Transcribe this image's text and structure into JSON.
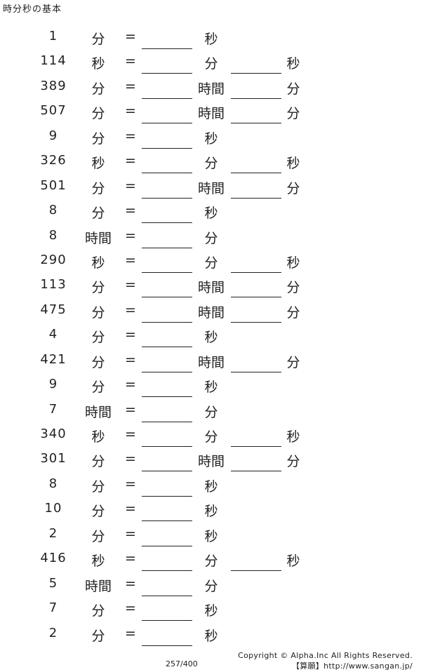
{
  "title": "時分秒の基本",
  "problems": [
    {
      "n": "1",
      "from": "分",
      "u2": "秒",
      "u3": ""
    },
    {
      "n": "114",
      "from": "秒",
      "u2": "分",
      "u3": "秒"
    },
    {
      "n": "389",
      "from": "分",
      "u2": "時間",
      "u3": "分"
    },
    {
      "n": "507",
      "from": "分",
      "u2": "時間",
      "u3": "分"
    },
    {
      "n": "9",
      "from": "分",
      "u2": "秒",
      "u3": ""
    },
    {
      "n": "326",
      "from": "秒",
      "u2": "分",
      "u3": "秒"
    },
    {
      "n": "501",
      "from": "分",
      "u2": "時間",
      "u3": "分"
    },
    {
      "n": "8",
      "from": "分",
      "u2": "秒",
      "u3": ""
    },
    {
      "n": "8",
      "from": "時間",
      "u2": "分",
      "u3": ""
    },
    {
      "n": "290",
      "from": "秒",
      "u2": "分",
      "u3": "秒"
    },
    {
      "n": "113",
      "from": "分",
      "u2": "時間",
      "u3": "分"
    },
    {
      "n": "475",
      "from": "分",
      "u2": "時間",
      "u3": "分"
    },
    {
      "n": "4",
      "from": "分",
      "u2": "秒",
      "u3": ""
    },
    {
      "n": "421",
      "from": "分",
      "u2": "時間",
      "u3": "分"
    },
    {
      "n": "9",
      "from": "分",
      "u2": "秒",
      "u3": ""
    },
    {
      "n": "7",
      "from": "時間",
      "u2": "分",
      "u3": ""
    },
    {
      "n": "340",
      "from": "秒",
      "u2": "分",
      "u3": "秒"
    },
    {
      "n": "301",
      "from": "分",
      "u2": "時間",
      "u3": "分"
    },
    {
      "n": "8",
      "from": "分",
      "u2": "秒",
      "u3": ""
    },
    {
      "n": "10",
      "from": "分",
      "u2": "秒",
      "u3": ""
    },
    {
      "n": "2",
      "from": "分",
      "u2": "秒",
      "u3": ""
    },
    {
      "n": "416",
      "from": "秒",
      "u2": "分",
      "u3": "秒"
    },
    {
      "n": "5",
      "from": "時間",
      "u2": "分",
      "u3": ""
    },
    {
      "n": "7",
      "from": "分",
      "u2": "秒",
      "u3": ""
    },
    {
      "n": "2",
      "from": "分",
      "u2": "秒",
      "u3": ""
    }
  ],
  "equals": "=",
  "footer": {
    "copyright": "Copyright © Alpha.Inc All Rights Reserved.",
    "site": "【算願】http://www.sangan.jp/",
    "page": "257/400"
  }
}
